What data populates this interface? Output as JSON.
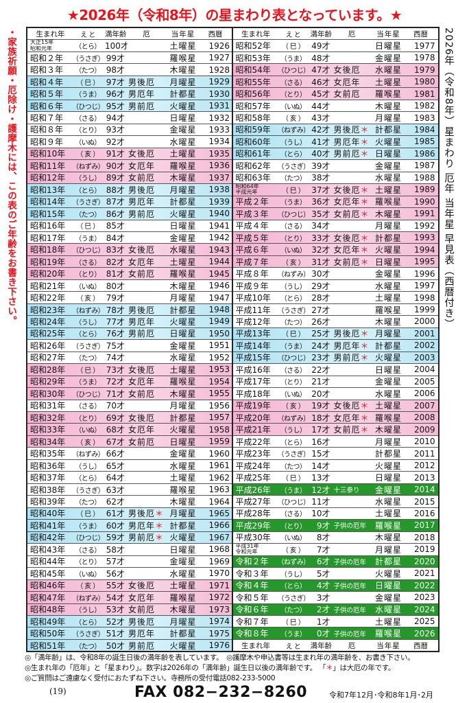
{
  "title": "★2026年（令和8年）の星まわり表となっています。★",
  "left_note": "・家族祈願・厄除け・護摩木には、この表のご年齢をお書き下さい。",
  "right_note": "2026年（令和8年）星まわり 厄年 当年星 早見表（西暦付き）",
  "colors": {
    "accent_red": "#e8141c",
    "female_yaku": "#f7c6dc",
    "male_yaku": "#c6ecf6",
    "child": "#26972a"
  },
  "header": {
    "year": "生まれ年",
    "eto": "え と",
    "age": "満年齢",
    "yaku": "厄",
    "star": "当年星",
    "western": "西暦"
  },
  "big_yaku_mark": "＊",
  "left_rows": [
    [
      "大正15年|昭和元年",
      "（とら）",
      "100才",
      "",
      "土曜星",
      "1926",
      ""
    ],
    [
      "昭和２年",
      "（うさぎ）",
      "99才",
      "",
      "羅喉星",
      "1927",
      ""
    ],
    [
      "昭和３年",
      "（たつ）",
      "98才",
      "",
      "木曜星",
      "1928",
      ""
    ],
    [
      "昭和４年",
      "（ 巳 ）",
      "97才",
      "男後厄",
      "月曜星",
      "1929",
      "blue"
    ],
    [
      "昭和５年",
      "（うま）",
      "96才",
      "男厄年",
      "計都星",
      "1930",
      "blue"
    ],
    [
      "昭和６年",
      "（ひつじ）",
      "95才",
      "男前厄",
      "火曜星",
      "1931",
      "blue"
    ],
    [
      "昭和７年",
      "（さる）",
      "94才",
      "",
      "日曜星",
      "1932",
      ""
    ],
    [
      "昭和８年",
      "（とり）",
      "93才",
      "",
      "金曜星",
      "1933",
      ""
    ],
    [
      "昭和９年",
      "（いぬ）",
      "92才",
      "",
      "水曜星",
      "1934",
      ""
    ],
    [
      "昭和10年",
      "（ 亥 ）",
      "91才",
      "女後厄",
      "土曜星",
      "1935",
      "pink"
    ],
    [
      "昭和11年",
      "（ねずみ）",
      "90才",
      "女厄年",
      "羅喉星",
      "1936",
      "pink"
    ],
    [
      "昭和12年",
      "（うし）",
      "89才",
      "女前厄",
      "木曜星",
      "1937",
      "pink"
    ],
    [
      "昭和13年",
      "（とら）",
      "88才",
      "男後厄",
      "月曜星",
      "1938",
      "blue"
    ],
    [
      "昭和14年",
      "（うさぎ）",
      "87才",
      "男厄年",
      "計都星",
      "1939",
      "blue"
    ],
    [
      "昭和15年",
      "（たつ）",
      "86才",
      "男前厄",
      "火曜星",
      "1940",
      "blue"
    ],
    [
      "昭和16年",
      "（ 巳 ）",
      "85才",
      "",
      "日曜星",
      "1941",
      ""
    ],
    [
      "昭和17年",
      "（うま）",
      "84才",
      "",
      "金曜星",
      "1942",
      ""
    ],
    [
      "昭和18年",
      "（ひつじ）",
      "83才",
      "女後厄",
      "水曜星",
      "1943",
      "pink"
    ],
    [
      "昭和19年",
      "（さる）",
      "82才",
      "女厄年",
      "土曜星",
      "1944",
      "pink"
    ],
    [
      "昭和20年",
      "（とり）",
      "81才",
      "女前厄",
      "羅喉星",
      "1945",
      "pink"
    ],
    [
      "昭和21年",
      "（いぬ）",
      "80才",
      "",
      "木曜星",
      "1946",
      ""
    ],
    [
      "昭和22年",
      "（ 亥 ）",
      "79才",
      "",
      "月曜星",
      "1947",
      ""
    ],
    [
      "昭和23年",
      "（ねずみ）",
      "78才",
      "男後厄",
      "計都星",
      "1948",
      "blue"
    ],
    [
      "昭和24年",
      "（うし）",
      "77才",
      "男厄年",
      "火曜星",
      "1949",
      "blue"
    ],
    [
      "昭和25年",
      "（とら）",
      "76才",
      "男前厄",
      "日曜星",
      "1950",
      "blue"
    ],
    [
      "昭和26年",
      "（うさぎ）",
      "75才",
      "",
      "金曜星",
      "1951",
      ""
    ],
    [
      "昭和27年",
      "（たつ）",
      "74才",
      "",
      "水曜星",
      "1952",
      ""
    ],
    [
      "昭和28年",
      "（ 巳 ）",
      "73才",
      "女後厄",
      "土曜星",
      "1953",
      "pink"
    ],
    [
      "昭和29年",
      "（うま）",
      "72才",
      "女厄年",
      "羅喉星",
      "1954",
      "pink"
    ],
    [
      "昭和30年",
      "（ひつじ）",
      "71才",
      "女前厄",
      "木曜星",
      "1955",
      "pink"
    ],
    [
      "昭和31年",
      "（さる）",
      "70才",
      "",
      "月曜星",
      "1956",
      ""
    ],
    [
      "昭和32年",
      "（とり）",
      "69才",
      "女後厄",
      "計都星",
      "1957",
      "pink"
    ],
    [
      "昭和33年",
      "（いぬ）",
      "68才",
      "女厄年",
      "火曜星",
      "1958",
      "pink"
    ],
    [
      "昭和34年",
      "（ 亥 ）",
      "67才",
      "女前厄",
      "日曜星",
      "1959",
      "pink"
    ],
    [
      "昭和35年",
      "（ねずみ）",
      "66才",
      "",
      "金曜星",
      "1960",
      ""
    ],
    [
      "昭和36年",
      "（うし）",
      "65才",
      "",
      "水曜星",
      "1961",
      ""
    ],
    [
      "昭和37年",
      "（とら）",
      "64才",
      "",
      "土曜星",
      "1962",
      ""
    ],
    [
      "昭和38年",
      "（うさぎ）",
      "63才",
      "",
      "羅喉星",
      "1963",
      ""
    ],
    [
      "昭和39年",
      "（たつ）",
      "62才",
      "",
      "木曜星",
      "1964",
      ""
    ],
    [
      "昭和40年",
      "（ 巳 ）",
      "61才",
      "男後厄＊",
      "月曜星",
      "1965",
      "blue"
    ],
    [
      "昭和41年",
      "（うま）",
      "60才",
      "男厄年＊",
      "計都星",
      "1966",
      "blue"
    ],
    [
      "昭和42年",
      "（ひつじ）",
      "59才",
      "男前厄＊",
      "火曜星",
      "1967",
      "blue"
    ],
    [
      "昭和43年",
      "（さる）",
      "58才",
      "",
      "日曜星",
      "1968",
      ""
    ],
    [
      "昭和44年",
      "（とり）",
      "57才",
      "",
      "金曜星",
      "1969",
      ""
    ],
    [
      "昭和45年",
      "（いぬ）",
      "56才",
      "",
      "水曜星",
      "1970",
      ""
    ],
    [
      "昭和46年",
      "（ 亥 ）",
      "55才",
      "女後厄",
      "土曜星",
      "1971",
      "pink"
    ],
    [
      "昭和47年",
      "（ねずみ）",
      "54才",
      "女厄年",
      "羅喉星",
      "1972",
      "pink"
    ],
    [
      "昭和48年",
      "（うし）",
      "53才",
      "女前厄",
      "木曜星",
      "1973",
      "pink"
    ],
    [
      "昭和49年",
      "（とら）",
      "52才",
      "男後厄",
      "月曜星",
      "1974",
      "blue"
    ],
    [
      "昭和50年",
      "（うさぎ）",
      "51才",
      "男厄年",
      "計都星",
      "1975",
      "blue"
    ],
    [
      "昭和51年",
      "（たつ）",
      "50才",
      "男前厄",
      "火曜星",
      "1976",
      "blue"
    ]
  ],
  "right_rows": [
    [
      "昭和52年",
      "（ 巳 ）",
      "49才",
      "",
      "日曜星",
      "1977",
      ""
    ],
    [
      "昭和53年",
      "（うま）",
      "48才",
      "",
      "金曜星",
      "1978",
      ""
    ],
    [
      "昭和54年",
      "（ひつじ）",
      "47才",
      "女後厄",
      "水曜星",
      "1979",
      "pink"
    ],
    [
      "昭和55年",
      "（さる）",
      "46才",
      "女厄年",
      "土曜星",
      "1980",
      "pink"
    ],
    [
      "昭和56年",
      "（とり）",
      "45才",
      "女前厄",
      "羅喉星",
      "1981",
      "pink"
    ],
    [
      "昭和57年",
      "（いぬ）",
      "44才",
      "",
      "木曜星",
      "1982",
      ""
    ],
    [
      "昭和58年",
      "（ 亥 ）",
      "43才",
      "",
      "月曜星",
      "1983",
      ""
    ],
    [
      "昭和59年",
      "（ねずみ）",
      "42才",
      "男後厄＊",
      "計都星",
      "1984",
      "blue"
    ],
    [
      "昭和60年",
      "（うし）",
      "41才",
      "男厄年＊",
      "火曜星",
      "1985",
      "blue"
    ],
    [
      "昭和61年",
      "（とら）",
      "40才",
      "男前厄＊",
      "日曜星",
      "1986",
      "blue"
    ],
    [
      "昭和62年",
      "（うさぎ）",
      "39才",
      "",
      "金曜星",
      "1987",
      ""
    ],
    [
      "昭和63年",
      "（たつ）",
      "38才",
      "",
      "水曜星",
      "1988",
      ""
    ],
    [
      "昭和64年|平成元年",
      "（ 巳 ）",
      "37才",
      "女後厄＊",
      "土曜星",
      "1989",
      "pink"
    ],
    [
      "平成２年",
      "（うま）",
      "36才",
      "女厄年＊",
      "羅喉星",
      "1990",
      "pink"
    ],
    [
      "平成３年",
      "（ひつじ）",
      "35才",
      "女前厄＊",
      "木曜星",
      "1991",
      "pink"
    ],
    [
      "平成４年",
      "（さる）",
      "34才",
      "",
      "月曜星",
      "1992",
      ""
    ],
    [
      "平成５年",
      "（とり）",
      "33才",
      "女後厄＊",
      "計都星",
      "1993",
      "pink"
    ],
    [
      "平成６年",
      "（いぬ）",
      "32才",
      "女厄年＊",
      "火曜星",
      "1994",
      "pink"
    ],
    [
      "平成７年",
      "（ 亥 ）",
      "31才",
      "女前厄＊",
      "日曜星",
      "1995",
      "pink"
    ],
    [
      "平成８年",
      "（ねずみ）",
      "30才",
      "",
      "金曜星",
      "1996",
      ""
    ],
    [
      "平成９年",
      "（うし）",
      "29才",
      "",
      "水曜星",
      "1997",
      ""
    ],
    [
      "平成10年",
      "（とら）",
      "28才",
      "",
      "土曜星",
      "1998",
      ""
    ],
    [
      "平成11年",
      "（うさぎ）",
      "27才",
      "",
      "羅喉星",
      "1999",
      ""
    ],
    [
      "平成12年",
      "（たつ）",
      "26才",
      "",
      "木曜星",
      "2000",
      ""
    ],
    [
      "平成13年",
      "（ 巳 ）",
      "25才",
      "男後厄＊",
      "月曜星",
      "2001",
      "blue"
    ],
    [
      "平成14年",
      "（うま）",
      "24才",
      "男厄年＊",
      "計都星",
      "2002",
      "blue"
    ],
    [
      "平成15年",
      "（ひつじ）",
      "23才",
      "男前厄＊",
      "火曜星",
      "2003",
      "blue"
    ],
    [
      "平成16年",
      "（さる）",
      "22才",
      "",
      "日曜星",
      "2004",
      ""
    ],
    [
      "平成17年",
      "（とり）",
      "21才",
      "",
      "金曜星",
      "2005",
      ""
    ],
    [
      "平成18年",
      "（いぬ）",
      "20才",
      "",
      "水曜星",
      "2006",
      ""
    ],
    [
      "平成19年",
      "（ 亥 ）",
      "19才",
      "女後厄＊",
      "土曜星",
      "2007",
      "pink"
    ],
    [
      "平成20年",
      "（ねずみ）",
      "18才",
      "女厄年＊",
      "羅喉星",
      "2008",
      "pink"
    ],
    [
      "平成21年",
      "（うし）",
      "17才",
      "女前厄＊",
      "木曜星",
      "2009",
      "pink"
    ],
    [
      "平成22年",
      "（とら）",
      "16才",
      "",
      "月曜星",
      "2010",
      ""
    ],
    [
      "平成23年",
      "（うさぎ）",
      "15才",
      "",
      "計都星",
      "2011",
      ""
    ],
    [
      "平成24年",
      "（たつ）",
      "14才",
      "",
      "火曜星",
      "2012",
      ""
    ],
    [
      "平成25年",
      "（ 巳 ）",
      "13才",
      "",
      "日曜星",
      "2013",
      ""
    ],
    [
      "平成26年",
      "（うま）",
      "12才",
      "十三参り",
      "金曜星",
      "2014",
      "green"
    ],
    [
      "平成27年",
      "（ひつじ）",
      "11才",
      "",
      "水曜星",
      "2015",
      ""
    ],
    [
      "平成28年",
      "（さる）",
      "10才",
      "",
      "土曜星",
      "2016",
      ""
    ],
    [
      "平成29年",
      "（とり）",
      "9才",
      "子供の厄年",
      "羅喉星",
      "2017",
      "green"
    ],
    [
      "平成30年",
      "（いぬ）",
      "8才",
      "",
      "木曜星",
      "2018",
      ""
    ],
    [
      "平成31年|令和元年",
      "（ 亥 ）",
      "7才",
      "",
      "月曜星",
      "2019",
      ""
    ],
    [
      "令和２年",
      "（ねずみ）",
      "6才",
      "子供の厄年",
      "計都星",
      "2020",
      "green"
    ],
    [
      "令和３年",
      "（うし）",
      "5才",
      "",
      "火曜星",
      "2021",
      ""
    ],
    [
      "令和４年",
      "（とら）",
      "4才",
      "子供の厄年",
      "日曜星",
      "2022",
      "green"
    ],
    [
      "令和５年",
      "（うさぎ）",
      "3才",
      "",
      "金曜星",
      "2023",
      ""
    ],
    [
      "令和６年",
      "（たつ）",
      "2才",
      "子供の厄年",
      "水曜星",
      "2024",
      "green"
    ],
    [
      "令和７年",
      "（ 巳 ）",
      "1才",
      "",
      "土曜星",
      "2025",
      ""
    ],
    [
      "令和８年",
      "（うま）",
      "0才",
      "子供の厄年",
      "羅喉星",
      "2026",
      "green"
    ]
  ],
  "notes": {
    "line1": "◎「満年齢」は、令和8年の誕生日後の満年齢を表しています。　◎護摩木や申込書等は生まれ年の満年齢を、お書き下さい。",
    "line2a": "◎生まれ年の「厄年」と「星まわり」。数字は2026年の「満年齢」誕生日以後の満年齢です。 「",
    "line2_mark": "＊",
    "line2b": "」は大厄の年です。",
    "line3": "◎ご質問はご遠慮なく受付におたずね下さい。寺務所の受付電話082-233-5000"
  },
  "footer": {
    "page": "(19)",
    "fax": "FAX  082−232−8260",
    "issue": "令和7年12月･令和8年1月･2月"
  }
}
